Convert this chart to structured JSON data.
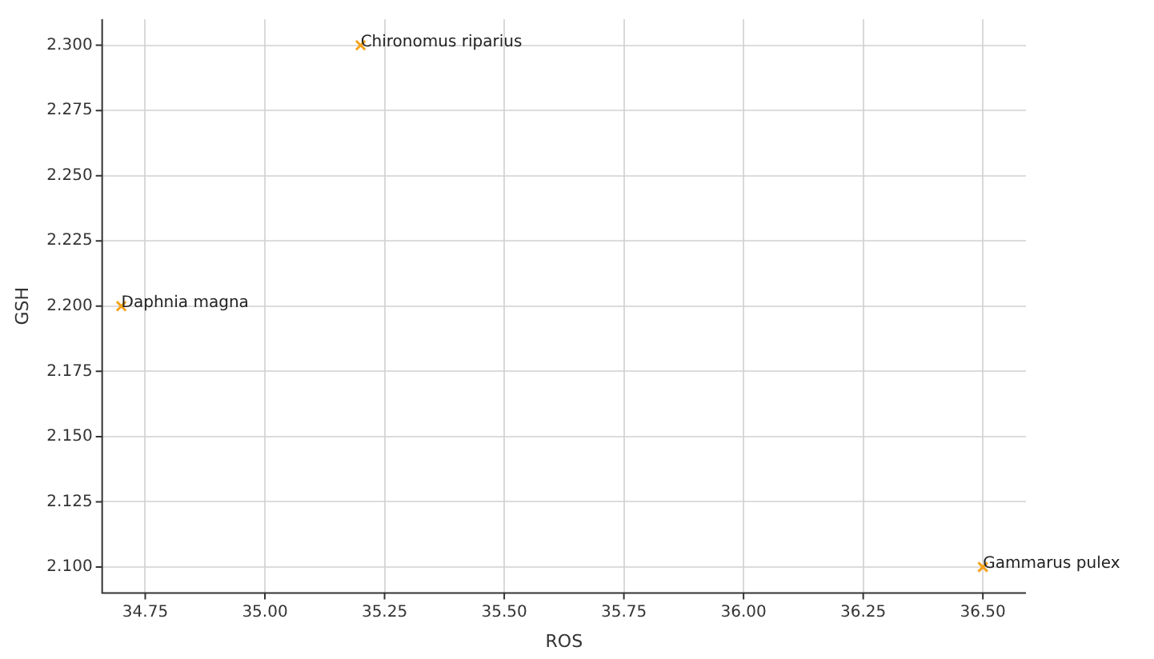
{
  "chart_data": {
    "type": "scatter",
    "xlabel": "ROS",
    "ylabel": "GSH",
    "x": [
      34.7,
      35.2,
      36.5
    ],
    "series": [
      {
        "color": "#f5a21b",
        "values": [
          2.2,
          2.3,
          2.1
        ]
      }
    ],
    "marker": "cross",
    "grid": true,
    "legend": false,
    "xlim": [
      34.66,
      36.59
    ],
    "ylim": [
      2.09,
      2.31
    ],
    "xticks": [
      {
        "value": 34.75,
        "label": "34.75"
      },
      {
        "value": 35.0,
        "label": "35.00"
      },
      {
        "value": 35.25,
        "label": "35.25"
      },
      {
        "value": 35.5,
        "label": "35.50"
      },
      {
        "value": 35.75,
        "label": "35.75"
      },
      {
        "value": 36.0,
        "label": "36.00"
      },
      {
        "value": 36.25,
        "label": "36.25"
      },
      {
        "value": 36.5,
        "label": "36.50"
      }
    ],
    "yticks": [
      {
        "value": 2.1,
        "label": "2.100"
      },
      {
        "value": 2.125,
        "label": "2.125"
      },
      {
        "value": 2.15,
        "label": "2.150"
      },
      {
        "value": 2.175,
        "label": "2.175"
      },
      {
        "value": 2.2,
        "label": "2.200"
      },
      {
        "value": 2.225,
        "label": "2.225"
      },
      {
        "value": 2.25,
        "label": "2.250"
      },
      {
        "value": 2.275,
        "label": "2.275"
      },
      {
        "value": 2.3,
        "label": "2.300"
      }
    ],
    "annotations": [
      {
        "text": "Daphnia magna",
        "x": 34.7,
        "y": 2.2
      },
      {
        "text": "Chironomus riparius",
        "x": 35.2,
        "y": 2.3
      },
      {
        "text": "Gammarus pulex",
        "x": 36.5,
        "y": 2.1
      }
    ]
  }
}
